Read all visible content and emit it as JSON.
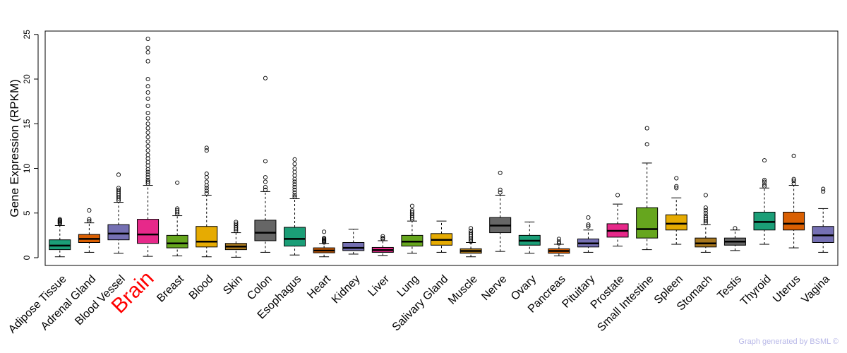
{
  "chart_data": {
    "type": "boxplot",
    "title": "",
    "xlabel": "",
    "ylabel": "Gene Expression (RPKM)",
    "ylim": [
      -0.8,
      25.5
    ],
    "yticks": [
      0,
      5,
      10,
      15,
      20,
      25
    ],
    "highlight": "Brain",
    "highlight_color": "#ff0000",
    "categories": [
      "Adipose Tissue",
      "Adrenal Gland",
      "Blood Vessel",
      "Brain",
      "Breast",
      "Blood",
      "Skin",
      "Colon",
      "Esophagus",
      "Heart",
      "Kidney",
      "Liver",
      "Lung",
      "Salivary Gland",
      "Muscle",
      "Nerve",
      "Ovary",
      "Pancreas",
      "Pituitary",
      "Prostate",
      "Small Intestine",
      "Spleen",
      "Stomach",
      "Testis",
      "Thyroid",
      "Uterus",
      "Vagina"
    ],
    "series": [
      {
        "name": "Adipose Tissue",
        "color": "#1b9e77",
        "min": 0.1,
        "q1": 0.9,
        "median": 1.35,
        "q3": 2.0,
        "max": 3.6,
        "outliers": [
          3.8,
          3.9,
          4.0,
          4.1,
          4.2,
          4.3
        ]
      },
      {
        "name": "Adrenal Gland",
        "color": "#d95f02",
        "min": 0.6,
        "q1": 1.7,
        "median": 2.1,
        "q3": 2.6,
        "max": 3.9,
        "outliers": [
          4.1,
          4.3,
          5.3
        ]
      },
      {
        "name": "Blood Vessel",
        "color": "#7570b3",
        "min": 0.5,
        "q1": 2.0,
        "median": 2.7,
        "q3": 3.7,
        "max": 6.2,
        "outliers": [
          6.4,
          6.6,
          6.8,
          7.0,
          7.2,
          7.4,
          7.6,
          7.8,
          9.3
        ]
      },
      {
        "name": "Brain",
        "color": "#e7298a",
        "min": 0.15,
        "q1": 1.6,
        "median": 2.6,
        "q3": 4.3,
        "max": 8.1,
        "outliers": [
          8.3,
          8.5,
          8.7,
          9.0,
          9.3,
          9.6,
          9.9,
          10.3,
          10.7,
          11.1,
          11.5,
          12.0,
          12.5,
          13.0,
          13.5,
          14.0,
          14.5,
          15.0,
          15.6,
          16.2,
          17.0,
          17.8,
          18.5,
          19.2,
          20.0,
          22.0,
          23.0,
          23.5,
          24.5
        ]
      },
      {
        "name": "Breast",
        "color": "#66a61e",
        "min": 0.2,
        "q1": 1.1,
        "median": 1.6,
        "q3": 2.5,
        "max": 4.7,
        "outliers": [
          4.9,
          5.1,
          5.3,
          5.5,
          8.4
        ]
      },
      {
        "name": "Blood",
        "color": "#e6ab02",
        "min": 0.1,
        "q1": 1.2,
        "median": 1.8,
        "q3": 3.5,
        "max": 7.0,
        "outliers": [
          7.2,
          7.5,
          7.8,
          8.1,
          8.5,
          9.0,
          9.4,
          12.0,
          12.3
        ]
      },
      {
        "name": "Skin",
        "color": "#a6761d",
        "min": 0.05,
        "q1": 0.9,
        "median": 1.25,
        "q3": 1.6,
        "max": 2.8,
        "outliers": [
          3.0,
          3.2,
          3.4,
          3.6,
          3.8,
          4.0
        ]
      },
      {
        "name": "Colon",
        "color": "#666666",
        "min": 0.6,
        "q1": 1.9,
        "median": 2.8,
        "q3": 4.2,
        "max": 7.4,
        "outliers": [
          7.6,
          7.9,
          8.5,
          9.0,
          10.8,
          20.1
        ]
      },
      {
        "name": "Esophagus",
        "color": "#1b9e77",
        "min": 0.3,
        "q1": 1.3,
        "median": 2.1,
        "q3": 3.4,
        "max": 6.6,
        "outliers": [
          6.8,
          7.0,
          7.3,
          7.6,
          7.9,
          8.2,
          8.5,
          8.8,
          9.2,
          9.6,
          10.0,
          10.5,
          11.0
        ]
      },
      {
        "name": "Heart",
        "color": "#d95f02",
        "min": 0.1,
        "q1": 0.55,
        "median": 0.8,
        "q3": 1.1,
        "max": 1.6,
        "outliers": [
          1.7,
          1.8,
          1.9,
          2.0,
          2.1,
          2.2,
          2.9
        ]
      },
      {
        "name": "Kidney",
        "color": "#7570b3",
        "min": 0.4,
        "q1": 0.8,
        "median": 1.1,
        "q3": 1.7,
        "max": 3.2,
        "outliers": []
      },
      {
        "name": "Liver",
        "color": "#e7298a",
        "min": 0.25,
        "q1": 0.6,
        "median": 0.85,
        "q3": 1.15,
        "max": 1.9,
        "outliers": [
          2.1,
          2.2,
          2.4
        ]
      },
      {
        "name": "Lung",
        "color": "#66a61e",
        "min": 0.5,
        "q1": 1.3,
        "median": 1.8,
        "q3": 2.5,
        "max": 4.1,
        "outliers": [
          4.3,
          4.5,
          4.7,
          4.9,
          5.1,
          5.3,
          5.8
        ]
      },
      {
        "name": "Salivary Gland",
        "color": "#e6ab02",
        "min": 0.6,
        "q1": 1.4,
        "median": 2.0,
        "q3": 2.7,
        "max": 4.1,
        "outliers": []
      },
      {
        "name": "Muscle",
        "color": "#a6761d",
        "min": 0.1,
        "q1": 0.5,
        "median": 0.75,
        "q3": 1.0,
        "max": 1.7,
        "outliers": [
          1.8,
          2.0,
          2.2,
          2.4,
          2.6,
          2.8,
          3.0,
          3.3
        ]
      },
      {
        "name": "Nerve",
        "color": "#666666",
        "min": 0.7,
        "q1": 2.8,
        "median": 3.6,
        "q3": 4.5,
        "max": 7.0,
        "outliers": [
          7.3,
          7.6,
          9.5
        ]
      },
      {
        "name": "Ovary",
        "color": "#1b9e77",
        "min": 0.5,
        "q1": 1.4,
        "median": 1.9,
        "q3": 2.5,
        "max": 4.0,
        "outliers": []
      },
      {
        "name": "Pancreas",
        "color": "#d95f02",
        "min": 0.2,
        "q1": 0.5,
        "median": 0.75,
        "q3": 1.0,
        "max": 1.5,
        "outliers": [
          1.6,
          1.8,
          2.1
        ]
      },
      {
        "name": "Pituitary",
        "color": "#7570b3",
        "min": 0.6,
        "q1": 1.2,
        "median": 1.6,
        "q3": 2.1,
        "max": 3.1,
        "outliers": [
          3.5,
          3.7,
          4.5
        ]
      },
      {
        "name": "Prostate",
        "color": "#e7298a",
        "min": 1.3,
        "q1": 2.3,
        "median": 3.0,
        "q3": 3.8,
        "max": 6.0,
        "outliers": [
          7.0
        ]
      },
      {
        "name": "Small Intestine",
        "color": "#66a61e",
        "min": 0.9,
        "q1": 2.2,
        "median": 3.2,
        "q3": 5.6,
        "max": 10.6,
        "outliers": [
          12.7,
          14.5
        ]
      },
      {
        "name": "Spleen",
        "color": "#e6ab02",
        "min": 1.5,
        "q1": 3.1,
        "median": 3.8,
        "q3": 4.8,
        "max": 6.7,
        "outliers": [
          7.8,
          8.0,
          8.9
        ]
      },
      {
        "name": "Stomach",
        "color": "#a6761d",
        "min": 0.6,
        "q1": 1.2,
        "median": 1.6,
        "q3": 2.2,
        "max": 3.7,
        "outliers": [
          3.9,
          4.1,
          4.3,
          4.5,
          4.7,
          5.0,
          5.3,
          5.6,
          7.0
        ]
      },
      {
        "name": "Testis",
        "color": "#666666",
        "min": 0.8,
        "q1": 1.4,
        "median": 1.8,
        "q3": 2.2,
        "max": 3.1,
        "outliers": [
          3.3
        ]
      },
      {
        "name": "Thyroid",
        "color": "#1b9e77",
        "min": 1.5,
        "q1": 3.1,
        "median": 4.0,
        "q3": 5.1,
        "max": 7.8,
        "outliers": [
          8.0,
          8.2,
          8.5,
          8.7,
          10.9
        ]
      },
      {
        "name": "Uterus",
        "color": "#d95f02",
        "min": 1.1,
        "q1": 3.1,
        "median": 3.8,
        "q3": 5.1,
        "max": 8.1,
        "outliers": [
          8.3,
          8.6,
          8.8,
          11.4
        ]
      },
      {
        "name": "Vagina",
        "color": "#7570b3",
        "min": 0.6,
        "q1": 1.7,
        "median": 2.5,
        "q3": 3.5,
        "max": 5.5,
        "outliers": [
          7.4,
          7.7
        ]
      }
    ]
  },
  "footer": {
    "credit": "Graph generated by BSML ©"
  }
}
